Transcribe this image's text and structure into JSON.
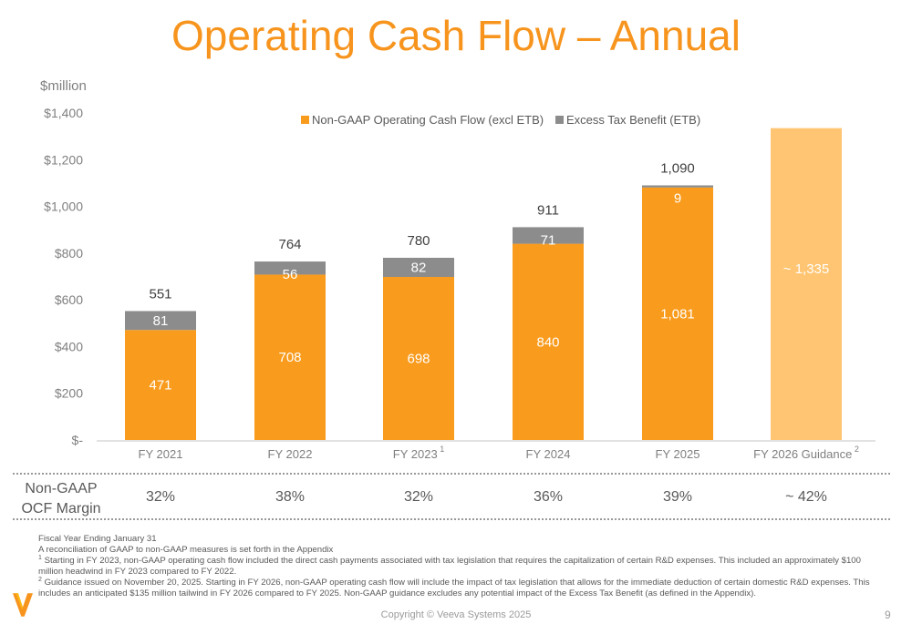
{
  "title": "Operating Cash Flow – Annual",
  "unit_label": "$million",
  "colors": {
    "ocf": "#F99B1C",
    "etb": "#8C8C8C",
    "guidance": "#FFC572",
    "title": "#F7941D"
  },
  "chart_data": {
    "type": "bar",
    "stacked": true,
    "categories": [
      "FY 2021",
      "FY 2022",
      "FY 2023",
      "FY 2024",
      "FY 2025",
      "FY 2026 Guidance"
    ],
    "category_superscripts": [
      "",
      "",
      "1",
      "",
      "",
      "2"
    ],
    "series": [
      {
        "name": "Non-GAAP Operating Cash Flow (excl ETB)",
        "values": [
          471,
          708,
          698,
          840,
          1081,
          null
        ],
        "labels": [
          "471",
          "708",
          "698",
          "840",
          "1,081",
          ""
        ]
      },
      {
        "name": "Excess Tax Benefit (ETB)",
        "values": [
          81,
          56,
          82,
          71,
          9,
          null
        ],
        "labels": [
          "81",
          "56",
          "82",
          "71",
          "9",
          ""
        ]
      }
    ],
    "guidance": {
      "value": 1335,
      "label": "~ 1,335"
    },
    "totals": [
      "551",
      "764",
      "780",
      "911",
      "1,090",
      ""
    ],
    "ylim": [
      0,
      1400
    ],
    "yticks": [
      0,
      200,
      400,
      600,
      800,
      1000,
      1200,
      1400
    ],
    "ytick_labels": [
      "$-",
      "$200",
      "$400",
      "$600",
      "$800",
      "$1,000",
      "$1,200",
      "$1,400"
    ],
    "legend": "top-center",
    "grid": false
  },
  "margin_row": {
    "label_line1": "Non-GAAP",
    "label_line2": "OCF Margin",
    "values": [
      "32%",
      "38%",
      "32%",
      "36%",
      "39%",
      "~ 42%"
    ]
  },
  "notes": [
    "Fiscal Year Ending January 31",
    "A reconciliation of GAAP to non-GAAP measures is set forth in the Appendix",
    "Starting in FY 2023, non-GAAP operating cash flow included the direct cash payments associated with tax legislation that requires the capitalization of certain R&D expenses. This included an approximately $100 million headwind in FY 2023",
    "compared to FY 2022.",
    "Guidance issued on November 20, 2025. Starting in FY 2026, non-GAAP operating cash flow will include the impact of tax legislation that allows for the immediate deduction of certain domestic R&D expenses. This includes an anticipated",
    "$135 million tailwind in FY 2026 compared to FY 2025. Non-GAAP guidance excludes any potential impact of the Excess Tax Benefit (as defined in the Appendix)."
  ],
  "note_marks": [
    "1",
    "2"
  ],
  "copyright": "Copyright © Veeva Systems 2025",
  "page_number": "9"
}
